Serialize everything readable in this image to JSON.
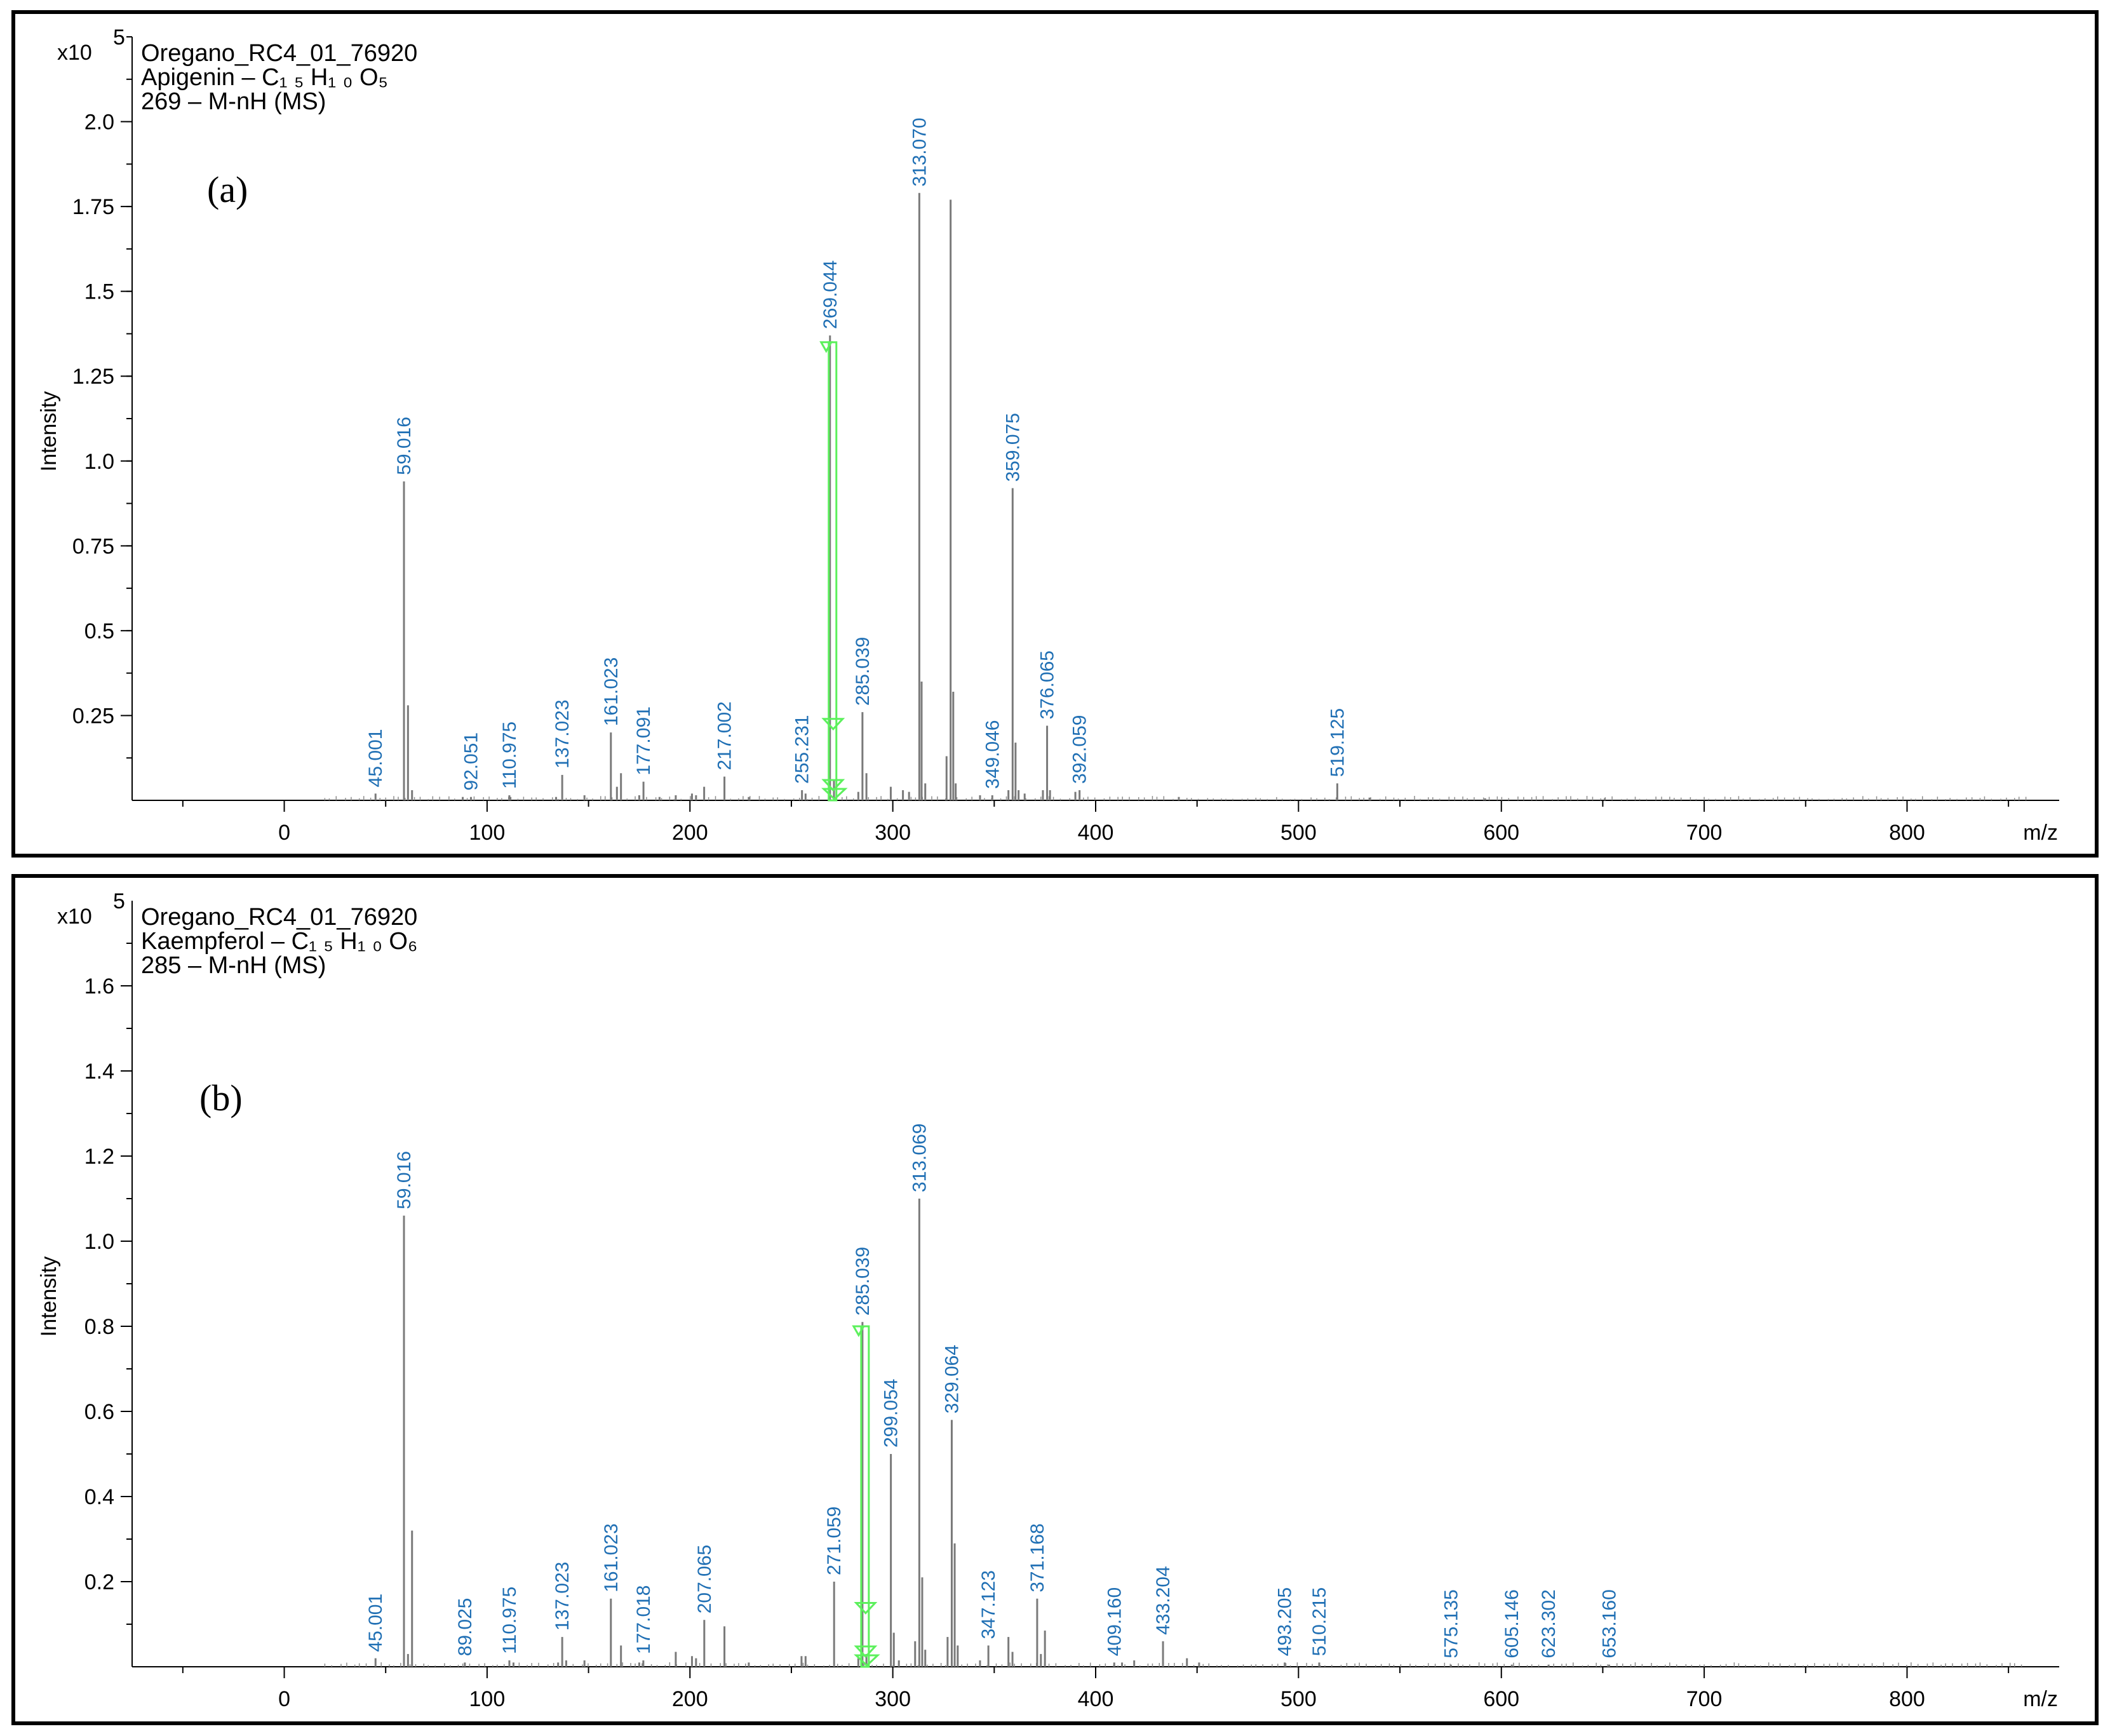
{
  "chart_data": [
    {
      "type": "bar",
      "panel_label": "(a)",
      "info_lines": [
        "Oregano_RC4_01_76920",
        "Apigenin – C₁ ₅ H₁ ₀ O₅",
        "269 – M-nH (MS)"
      ],
      "y_multiplier": "x10",
      "y_exponent": "5",
      "ylabel": "Intensity",
      "xlabel": "m/z",
      "xlim": [
        -75,
        875
      ],
      "ylim": [
        0,
        2.25
      ],
      "x_ticks": [
        "0",
        "100",
        "200",
        "300",
        "400",
        "500",
        "600",
        "700",
        "800"
      ],
      "y_ticks": [
        "0.25",
        "0.5",
        "0.75",
        "1.0",
        "1.25",
        "1.5",
        "1.75",
        "2.0"
      ],
      "labeled_peaks": [
        {
          "x": 45.001,
          "y": 0.02,
          "label": "45.001"
        },
        {
          "x": 59.016,
          "y": 0.94,
          "label": "59.016"
        },
        {
          "x": 92.051,
          "y": 0.01,
          "label": "92.051"
        },
        {
          "x": 110.975,
          "y": 0.015,
          "label": "110.975"
        },
        {
          "x": 137.023,
          "y": 0.075,
          "label": "137.023"
        },
        {
          "x": 161.023,
          "y": 0.2,
          "label": "161.023"
        },
        {
          "x": 177.091,
          "y": 0.055,
          "label": "177.091"
        },
        {
          "x": 217.002,
          "y": 0.07,
          "label": "217.002"
        },
        {
          "x": 255.231,
          "y": 0.03,
          "label": "255.231"
        },
        {
          "x": 269.044,
          "y": 1.37,
          "label": "269.044"
        },
        {
          "x": 285.039,
          "y": 0.26,
          "label": "285.039"
        },
        {
          "x": 313.07,
          "y": 1.79,
          "label": "313.070"
        },
        {
          "x": 349.046,
          "y": 0.015,
          "label": "349.046"
        },
        {
          "x": 359.075,
          "y": 0.92,
          "label": "359.075"
        },
        {
          "x": 376.065,
          "y": 0.22,
          "label": "376.065"
        },
        {
          "x": 392.059,
          "y": 0.03,
          "label": "392.059"
        },
        {
          "x": 519.125,
          "y": 0.05,
          "label": "519.125"
        }
      ],
      "other_peaks": [
        {
          "x": 61.0,
          "y": 0.28
        },
        {
          "x": 63.0,
          "y": 0.03
        },
        {
          "x": 88.0,
          "y": 0.01
        },
        {
          "x": 111.5,
          "y": 0.01
        },
        {
          "x": 134.0,
          "y": 0.01
        },
        {
          "x": 148.0,
          "y": 0.015
        },
        {
          "x": 164.0,
          "y": 0.04
        },
        {
          "x": 166.0,
          "y": 0.08
        },
        {
          "x": 175.0,
          "y": 0.015
        },
        {
          "x": 185.0,
          "y": 0.01
        },
        {
          "x": 193.0,
          "y": 0.015
        },
        {
          "x": 201.0,
          "y": 0.02
        },
        {
          "x": 203.0,
          "y": 0.015
        },
        {
          "x": 207.0,
          "y": 0.04
        },
        {
          "x": 229.0,
          "y": 0.01
        },
        {
          "x": 257.0,
          "y": 0.02
        },
        {
          "x": 271.0,
          "y": 0.06
        },
        {
          "x": 283.0,
          "y": 0.025
        },
        {
          "x": 287.0,
          "y": 0.08
        },
        {
          "x": 299.0,
          "y": 0.04
        },
        {
          "x": 305.0,
          "y": 0.03
        },
        {
          "x": 308.0,
          "y": 0.025
        },
        {
          "x": 314.2,
          "y": 0.35
        },
        {
          "x": 316.0,
          "y": 0.05
        },
        {
          "x": 326.5,
          "y": 0.13
        },
        {
          "x": 328.5,
          "y": 1.77
        },
        {
          "x": 329.8,
          "y": 0.32
        },
        {
          "x": 331.0,
          "y": 0.05
        },
        {
          "x": 343.0,
          "y": 0.015
        },
        {
          "x": 357.0,
          "y": 0.03
        },
        {
          "x": 360.5,
          "y": 0.17
        },
        {
          "x": 362.0,
          "y": 0.03
        },
        {
          "x": 365.0,
          "y": 0.02
        },
        {
          "x": 374.0,
          "y": 0.03
        },
        {
          "x": 377.5,
          "y": 0.03
        },
        {
          "x": 390.0,
          "y": 0.025
        },
        {
          "x": 441.0,
          "y": 0.01
        },
        {
          "x": 535.0,
          "y": 0.008
        },
        {
          "x": 592.0,
          "y": 0.006
        },
        {
          "x": 651.0,
          "y": 0.006
        }
      ],
      "arrow": {
        "x": 269.044,
        "y_top": 1.35,
        "y_mid": 0.24,
        "y_bottom": 0.0
      }
    },
    {
      "type": "bar",
      "panel_label": "(b)",
      "info_lines": [
        "Oregano_RC4_01_76920",
        "Kaempferol – C₁ ₅ H₁ ₀ O₆",
        "285 – M-nH (MS)"
      ],
      "y_multiplier": "x10",
      "y_exponent": "5",
      "ylabel": "Intensity",
      "xlabel": "m/z",
      "xlim": [
        -75,
        875
      ],
      "ylim": [
        0,
        1.8
      ],
      "x_ticks": [
        "0",
        "100",
        "200",
        "300",
        "400",
        "500",
        "600",
        "700",
        "800"
      ],
      "y_ticks": [
        "0.2",
        "0.4",
        "0.6",
        "0.8",
        "1.0",
        "1.2",
        "1.4",
        "1.6"
      ],
      "labeled_peaks": [
        {
          "x": 45.001,
          "y": 0.02,
          "label": "45.001"
        },
        {
          "x": 59.016,
          "y": 1.06,
          "label": "59.016"
        },
        {
          "x": 89.025,
          "y": 0.01,
          "label": "89.025"
        },
        {
          "x": 110.975,
          "y": 0.015,
          "label": "110.975"
        },
        {
          "x": 137.023,
          "y": 0.07,
          "label": "137.023"
        },
        {
          "x": 161.023,
          "y": 0.16,
          "label": "161.023"
        },
        {
          "x": 177.018,
          "y": 0.015,
          "label": "177.018"
        },
        {
          "x": 207.065,
          "y": 0.11,
          "label": "207.065"
        },
        {
          "x": 271.059,
          "y": 0.2,
          "label": "271.059"
        },
        {
          "x": 285.039,
          "y": 0.81,
          "label": "285.039"
        },
        {
          "x": 299.054,
          "y": 0.5,
          "label": "299.054"
        },
        {
          "x": 313.069,
          "y": 1.1,
          "label": "313.069"
        },
        {
          "x": 329.064,
          "y": 0.58,
          "label": "329.064"
        },
        {
          "x": 347.123,
          "y": 0.05,
          "label": "347.123"
        },
        {
          "x": 371.168,
          "y": 0.16,
          "label": "371.168"
        },
        {
          "x": 409.16,
          "y": 0.01,
          "label": "409.160"
        },
        {
          "x": 433.204,
          "y": 0.06,
          "label": "433.204"
        },
        {
          "x": 493.205,
          "y": 0.01,
          "label": "493.205"
        },
        {
          "x": 510.215,
          "y": 0.01,
          "label": "510.215"
        },
        {
          "x": 575.135,
          "y": 0.005,
          "label": "575.135"
        },
        {
          "x": 605.146,
          "y": 0.005,
          "label": "605.146"
        },
        {
          "x": 623.302,
          "y": 0.005,
          "label": "623.302"
        },
        {
          "x": 653.16,
          "y": 0.005,
          "label": "653.160"
        }
      ],
      "other_peaks": [
        {
          "x": 61.0,
          "y": 0.03
        },
        {
          "x": 63.0,
          "y": 0.32
        },
        {
          "x": 113.0,
          "y": 0.01
        },
        {
          "x": 135.0,
          "y": 0.01
        },
        {
          "x": 139.0,
          "y": 0.015
        },
        {
          "x": 148.0,
          "y": 0.015
        },
        {
          "x": 166.0,
          "y": 0.05
        },
        {
          "x": 175.0,
          "y": 0.01
        },
        {
          "x": 193.0,
          "y": 0.035
        },
        {
          "x": 201.0,
          "y": 0.025
        },
        {
          "x": 203.0,
          "y": 0.02
        },
        {
          "x": 217.0,
          "y": 0.095
        },
        {
          "x": 229.0,
          "y": 0.01
        },
        {
          "x": 255.0,
          "y": 0.025
        },
        {
          "x": 257.0,
          "y": 0.025
        },
        {
          "x": 283.0,
          "y": 0.02
        },
        {
          "x": 287.0,
          "y": 0.03
        },
        {
          "x": 300.5,
          "y": 0.08
        },
        {
          "x": 303.0,
          "y": 0.015
        },
        {
          "x": 311.0,
          "y": 0.06
        },
        {
          "x": 314.5,
          "y": 0.21
        },
        {
          "x": 316.0,
          "y": 0.04
        },
        {
          "x": 327.0,
          "y": 0.07
        },
        {
          "x": 330.5,
          "y": 0.29
        },
        {
          "x": 332.0,
          "y": 0.05
        },
        {
          "x": 343.0,
          "y": 0.015
        },
        {
          "x": 357.0,
          "y": 0.07
        },
        {
          "x": 359.0,
          "y": 0.035
        },
        {
          "x": 373.0,
          "y": 0.03
        },
        {
          "x": 375.0,
          "y": 0.085
        },
        {
          "x": 413.0,
          "y": 0.01
        },
        {
          "x": 419.0,
          "y": 0.015
        },
        {
          "x": 445.0,
          "y": 0.02
        },
        {
          "x": 451.0,
          "y": 0.01
        }
      ],
      "arrow": {
        "x": 285.039,
        "y_top": 0.8,
        "y_mid": 0.15,
        "y_bottom": 0.0
      }
    }
  ]
}
